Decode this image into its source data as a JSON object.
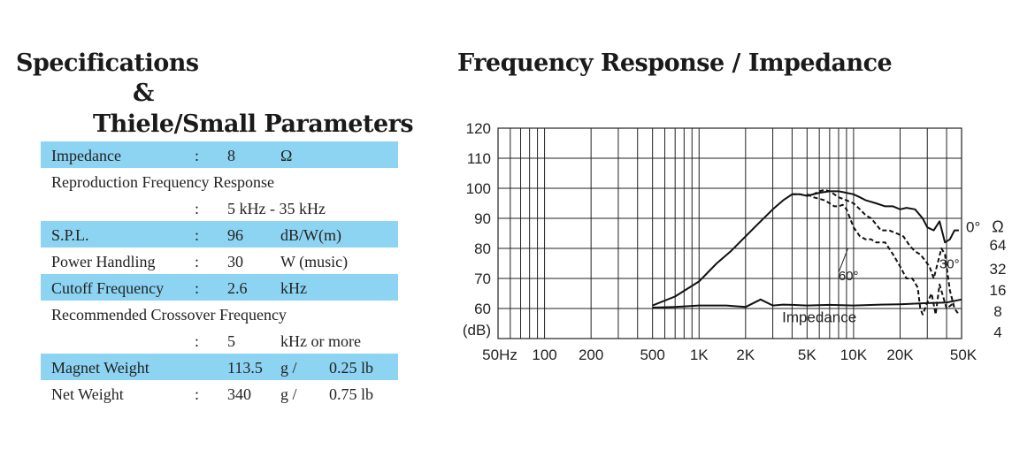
{
  "specs": {
    "title_line1": "Specifications",
    "title_line2": "&",
    "title_line3": "Thiele/Small Parameters",
    "rows": [
      {
        "label": "Impedance",
        "colon": ":",
        "value": "8",
        "unit": "Ω",
        "alt": "",
        "highlight": true
      },
      {
        "label": "Reproduction Frequency Response",
        "colon": "",
        "value": "",
        "unit": "",
        "alt": "",
        "highlight": false
      },
      {
        "label": "",
        "colon": ":",
        "value": "5 kHz - 35 kHz",
        "unit": "",
        "alt": "",
        "highlight": false
      },
      {
        "label": "S.P.L.",
        "colon": ":",
        "value": "96",
        "unit": "dB/W(m)",
        "alt": "",
        "highlight": true
      },
      {
        "label": "Power Handling",
        "colon": ":",
        "value": "30",
        "unit": "W (music)",
        "alt": "",
        "highlight": false
      },
      {
        "label": "Cutoff Frequency",
        "colon": ":",
        "value": "2.6",
        "unit": "kHz",
        "alt": "",
        "highlight": true
      },
      {
        "label": "Recommended Crossover Frequency",
        "colon": "",
        "value": "",
        "unit": "",
        "alt": "",
        "highlight": false
      },
      {
        "label": "",
        "colon": ":",
        "value": "5",
        "unit": "kHz or more",
        "alt": "",
        "highlight": false
      },
      {
        "label": "Magnet Weight",
        "colon": "",
        "value": "113.5",
        "unit": "g /",
        "alt": "0.25 lb",
        "highlight": true
      },
      {
        "label": "Net Weight",
        "colon": ":",
        "value": "340",
        "unit": "g /",
        "alt": "0.75 lb",
        "highlight": false
      }
    ]
  },
  "chart_data": {
    "type": "line",
    "title": "Frequency Response / Impedance",
    "ylabel": "(dB)",
    "xscale": "log",
    "xlim": [
      50,
      50000
    ],
    "ylim": [
      50,
      120
    ],
    "x_ticks": [
      {
        "v": 50,
        "label": "50Hz"
      },
      {
        "v": 100,
        "label": "100"
      },
      {
        "v": 200,
        "label": "200"
      },
      {
        "v": 500,
        "label": "500"
      },
      {
        "v": 1000,
        "label": "1K"
      },
      {
        "v": 2000,
        "label": "2K"
      },
      {
        "v": 5000,
        "label": "5K"
      },
      {
        "v": 10000,
        "label": "10K"
      },
      {
        "v": 20000,
        "label": "20K"
      },
      {
        "v": 50000,
        "label": "50K"
      }
    ],
    "y_ticks": [
      {
        "v": 120,
        "label": "120"
      },
      {
        "v": 110,
        "label": "110"
      },
      {
        "v": 100,
        "label": "100"
      },
      {
        "v": 90,
        "label": "90"
      },
      {
        "v": 80,
        "label": "80"
      },
      {
        "v": 70,
        "label": "70"
      },
      {
        "v": 60,
        "label": "60"
      }
    ],
    "impedance_axis": {
      "unit": "Ω",
      "ticks": [
        {
          "label": "64",
          "y_db": 80
        },
        {
          "label": "32",
          "y_db": 72
        },
        {
          "label": "16",
          "y_db": 65
        },
        {
          "label": "8",
          "y_db": 58
        },
        {
          "label": "4",
          "y_db": 51
        }
      ]
    },
    "grid": true,
    "series": [
      {
        "name": "0°",
        "style": "solid",
        "x": [
          500,
          700,
          1000,
          1300,
          1600,
          2000,
          2500,
          3000,
          3500,
          4000,
          4500,
          5000,
          6000,
          7000,
          8000,
          9000,
          10000,
          11000,
          12000,
          14000,
          16000,
          18000,
          20000,
          22000,
          25000,
          28000,
          30000,
          33000,
          36000,
          39000,
          42000,
          45000,
          48000
        ],
        "y": [
          61,
          64,
          69,
          75,
          79,
          84,
          89,
          93,
          96,
          98,
          98,
          97.5,
          98.5,
          99,
          99,
          98.5,
          98,
          97,
          96,
          95,
          94,
          94,
          93,
          93.5,
          93,
          90,
          87,
          86,
          89,
          82,
          83,
          86,
          86
        ]
      },
      {
        "name": "30°",
        "style": "dashed",
        "x": [
          4000,
          4500,
          5000,
          5500,
          6000,
          6500,
          7000,
          7500,
          8000,
          8500,
          9000,
          10000,
          11000,
          12000,
          13000,
          14000,
          15000,
          17000,
          19000,
          21000,
          23000,
          25000,
          27000,
          29000,
          31000,
          33000,
          35000,
          37000,
          39000,
          42000,
          45000,
          48000
        ],
        "y": [
          98,
          98,
          97.5,
          98,
          99,
          99.5,
          99,
          98,
          97,
          96.5,
          96,
          95,
          93,
          91,
          90,
          88,
          86,
          86,
          85,
          84,
          81,
          79,
          78,
          76,
          74,
          70,
          75,
          80,
          78,
          66,
          60,
          58
        ]
      },
      {
        "name": "60°",
        "style": "dashed",
        "x": [
          5000,
          5500,
          6000,
          6500,
          7000,
          7500,
          8000,
          8500,
          9000,
          9500,
          10000,
          11000,
          12000,
          13000,
          14000,
          16000,
          18000,
          20000,
          22000,
          24000,
          26000,
          27000,
          28000,
          30000,
          32000,
          34000,
          36000,
          40000,
          45000
        ],
        "y": [
          98,
          97,
          96.5,
          96,
          95,
          94,
          94,
          94.5,
          93,
          90,
          87,
          84,
          83,
          83,
          82,
          82,
          78,
          74,
          70,
          70,
          67,
          60,
          58,
          62,
          65,
          58,
          68,
          60,
          62
        ]
      },
      {
        "name": "Impedance",
        "style": "solid",
        "x": [
          500,
          700,
          1000,
          1500,
          2000,
          2500,
          3000,
          3500,
          4000,
          5000,
          7000,
          10000,
          15000,
          20000,
          30000,
          40000,
          50000
        ],
        "y": [
          60.3,
          60.5,
          61,
          61,
          60.5,
          63,
          61,
          61.3,
          61.2,
          61,
          61.2,
          61,
          61.3,
          61.4,
          61.8,
          62,
          63
        ]
      }
    ],
    "annotations": [
      {
        "text": "0°",
        "x": 50000,
        "y": 86
      },
      {
        "text": "30°",
        "x": 35000,
        "y": 74
      },
      {
        "text": "60°",
        "x": 7000,
        "y": 70
      },
      {
        "text": "Impedance",
        "x": 6000,
        "y": 56
      }
    ]
  }
}
